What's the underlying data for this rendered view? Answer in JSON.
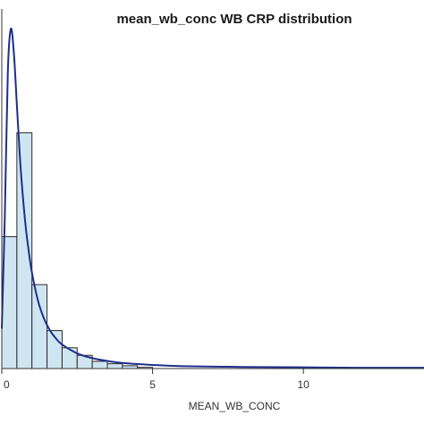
{
  "chart_data": {
    "type": "bar",
    "title": "mean_wb_conc WB CRP distribution",
    "xlabel": "MEAN_WB_CONC",
    "ylabel": "",
    "xlim": [
      0,
      14
    ],
    "ylim": [
      0,
      0.9
    ],
    "x_ticks": [
      {
        "value": 0,
        "label": "0"
      },
      {
        "value": 5,
        "label": "5"
      },
      {
        "value": 10,
        "label": "10"
      }
    ],
    "bin_width": 0.5,
    "bins": [
      {
        "start": 0.0,
        "value": 0.33
      },
      {
        "start": 0.5,
        "value": 0.59
      },
      {
        "start": 1.0,
        "value": 0.21
      },
      {
        "start": 1.5,
        "value": 0.095
      },
      {
        "start": 2.0,
        "value": 0.052
      },
      {
        "start": 2.5,
        "value": 0.033
      },
      {
        "start": 3.0,
        "value": 0.018
      },
      {
        "start": 3.5,
        "value": 0.012
      },
      {
        "start": 4.0,
        "value": 0.007
      },
      {
        "start": 4.5,
        "value": 0.003
      }
    ],
    "density_curve": {
      "x": [
        0,
        0.1,
        0.2,
        0.3,
        0.4,
        0.5,
        0.6,
        0.7,
        0.8,
        0.9,
        1.0,
        1.2,
        1.4,
        1.6,
        1.8,
        2.0,
        2.5,
        3.0,
        3.5,
        4.0,
        5.0,
        6.0,
        8.0,
        10.0,
        12.0,
        14.0
      ],
      "y": [
        0.1,
        0.38,
        0.74,
        0.85,
        0.79,
        0.66,
        0.53,
        0.43,
        0.35,
        0.29,
        0.24,
        0.17,
        0.125,
        0.095,
        0.075,
        0.06,
        0.038,
        0.026,
        0.019,
        0.014,
        0.009,
        0.006,
        0.004,
        0.003,
        0.002,
        0.002
      ]
    },
    "grid": false,
    "colors": {
      "bar_fill": "#cfe6f2",
      "bar_stroke": "#2b2b2b",
      "curve": "#1f2f8a",
      "axis": "#333333"
    }
  }
}
